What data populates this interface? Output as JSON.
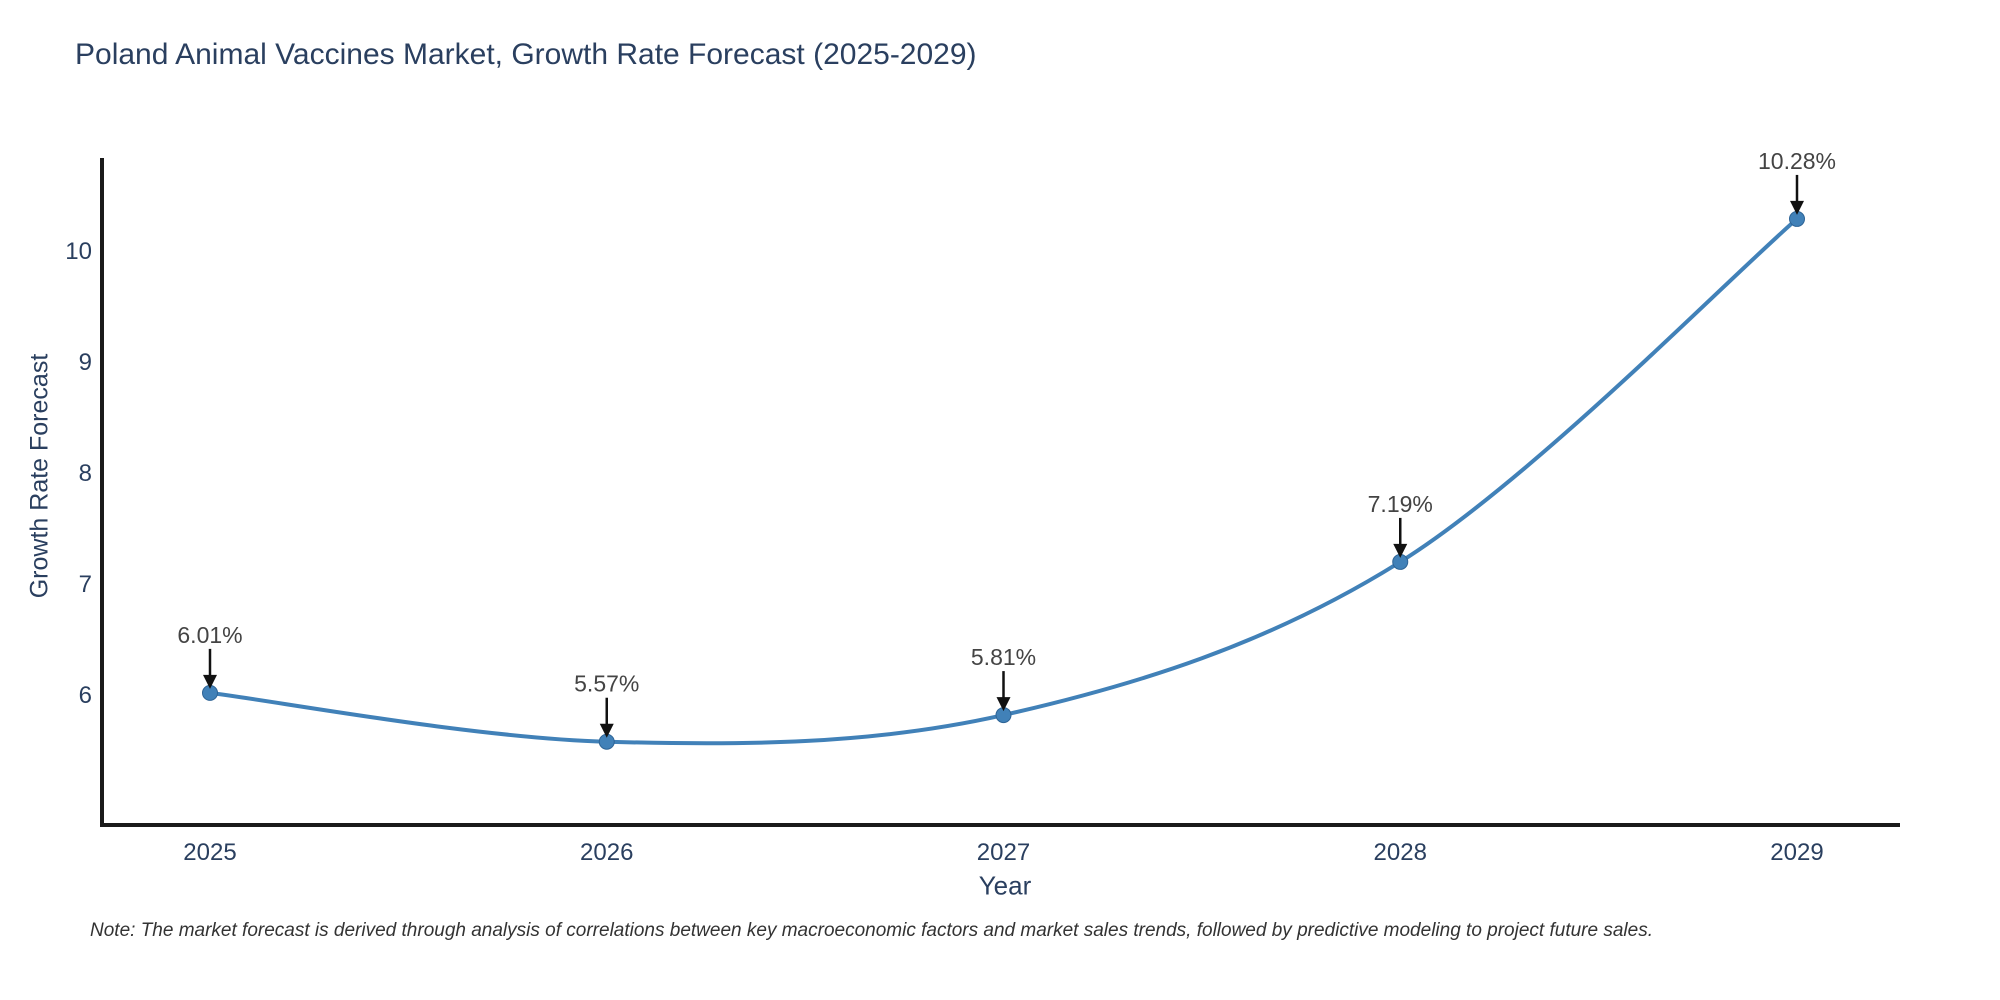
{
  "page": {
    "note": "Note: The market forecast is derived through analysis of correlations between key macroeconomic factors and market sales trends, followed by predictive modeling to project future sales."
  },
  "chart_data": {
    "type": "line",
    "title": "Poland Animal Vaccines Market, Growth Rate Forecast (2025-2029)",
    "xlabel": "Year",
    "ylabel": "Growth Rate Forecast",
    "x": [
      2025,
      2026,
      2027,
      2028,
      2029
    ],
    "series": [
      {
        "name": "Growth Rate Forecast",
        "values": [
          6.01,
          5.57,
          5.81,
          7.19,
          10.28
        ],
        "point_labels": [
          "6.01%",
          "5.57%",
          "5.81%",
          "7.19%",
          "10.28%"
        ]
      }
    ],
    "yticks": [
      6,
      7,
      8,
      9,
      10
    ],
    "ylim": [
      4.78,
      10.85
    ],
    "line_shape": "spline",
    "markers": true,
    "grid": false,
    "legend_position": "none",
    "annotations_have_arrows": true,
    "colors": {
      "line": "#4181b8",
      "marker": "#4181b8",
      "marker_edge": "#2e6496",
      "axis": "#1a1a1a",
      "tick_text": "#2a3f5f",
      "annotation_text": "#444444",
      "arrow": "#111111",
      "background": "#ffffff"
    }
  }
}
